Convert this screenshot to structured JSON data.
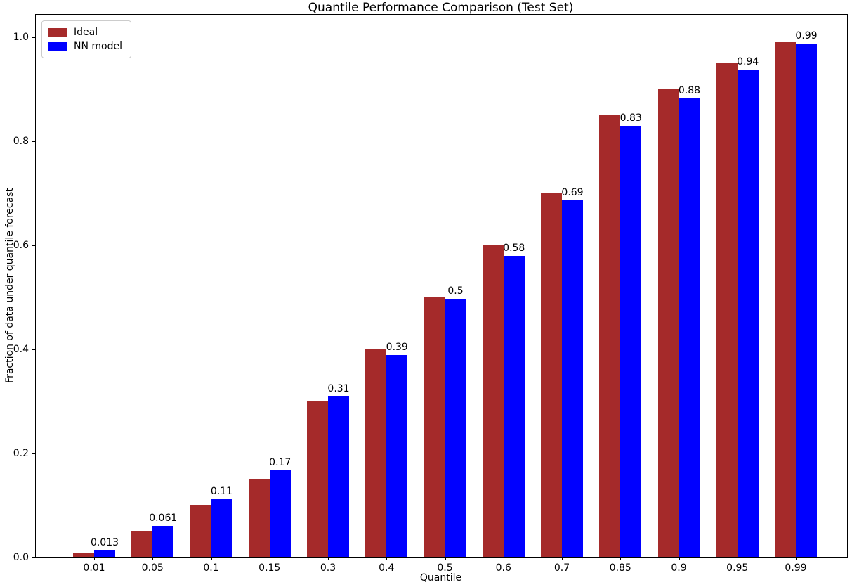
{
  "figure": {
    "background": "#ffffff",
    "text_color": "#000000",
    "axis_color": "#000000"
  },
  "chart_data": {
    "type": "bar",
    "title": "Quantile Performance Comparison (Test Set)",
    "xlabel": "Quantile",
    "ylabel": "Fraction of data under quantile forecast",
    "categories": [
      "0.01",
      "0.05",
      "0.1",
      "0.15",
      "0.3",
      "0.4",
      "0.5",
      "0.6",
      "0.7",
      "0.85",
      "0.9",
      "0.95",
      "0.99"
    ],
    "series": [
      {
        "name": "Ideal",
        "color": "#a52a2a",
        "values": [
          0.01,
          0.05,
          0.1,
          0.15,
          0.3,
          0.4,
          0.5,
          0.6,
          0.7,
          0.85,
          0.9,
          0.95,
          0.99
        ]
      },
      {
        "name": "NN model",
        "color": "#0000ff",
        "values": [
          0.013,
          0.061,
          0.112,
          0.168,
          0.31,
          0.389,
          0.497,
          0.58,
          0.687,
          0.829,
          0.882,
          0.937,
          0.987
        ]
      }
    ],
    "bar_labels": [
      "0.013",
      "0.061",
      "0.11",
      "0.17",
      "0.31",
      "0.39",
      "0.5",
      "0.58",
      "0.69",
      "0.83",
      "0.88",
      "0.94",
      "0.99"
    ],
    "yticks": [
      0.0,
      0.2,
      0.4,
      0.6,
      0.8,
      1.0
    ],
    "ytick_labels": [
      "0.0",
      "0.2",
      "0.4",
      "0.6",
      "0.8",
      "1.0"
    ],
    "ylim": [
      0,
      1.043
    ],
    "legend_position": "upper left",
    "grid": false
  }
}
